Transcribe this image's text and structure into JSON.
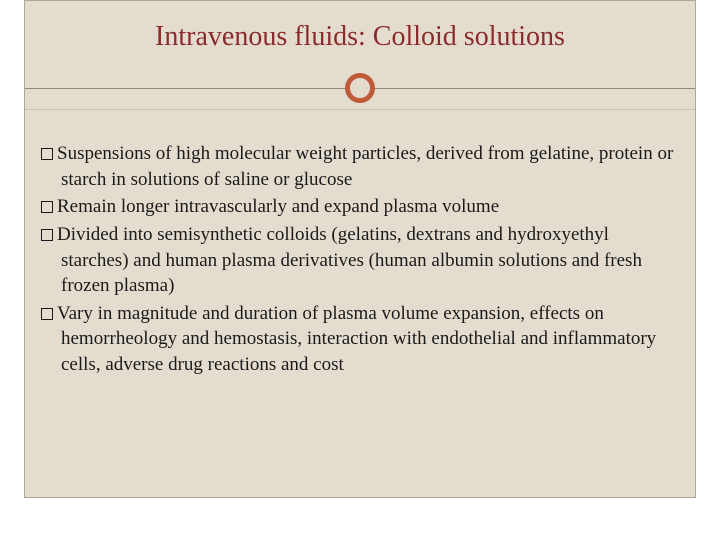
{
  "slide": {
    "title": "Intravenous fluids:  Colloid solutions",
    "title_color": "#8b2c2c",
    "title_fontsize": 28,
    "background_color": "#e4ddcf",
    "border_color": "#b0a890",
    "accent_circle_color": "#c05b3a",
    "divider_color": "#8b8b7a",
    "body_fontsize": 19,
    "body_color": "#1a1a1a",
    "bullets": [
      "Suspensions of high molecular weight particles, derived from gelatine, protein or starch in solutions of saline or glucose",
      "Remain longer intravascularly and expand plasma volume",
      "Divided into semisynthetic colloids (gelatins, dextrans and hydroxyethyl starches) and human plasma derivatives (human albumin solutions and fresh frozen plasma)",
      "Vary in magnitude and duration of plasma volume expansion, effects on hemorrheology and hemostasis, interaction with endothelial and inflammatory cells, adverse drug reactions and cost"
    ]
  }
}
